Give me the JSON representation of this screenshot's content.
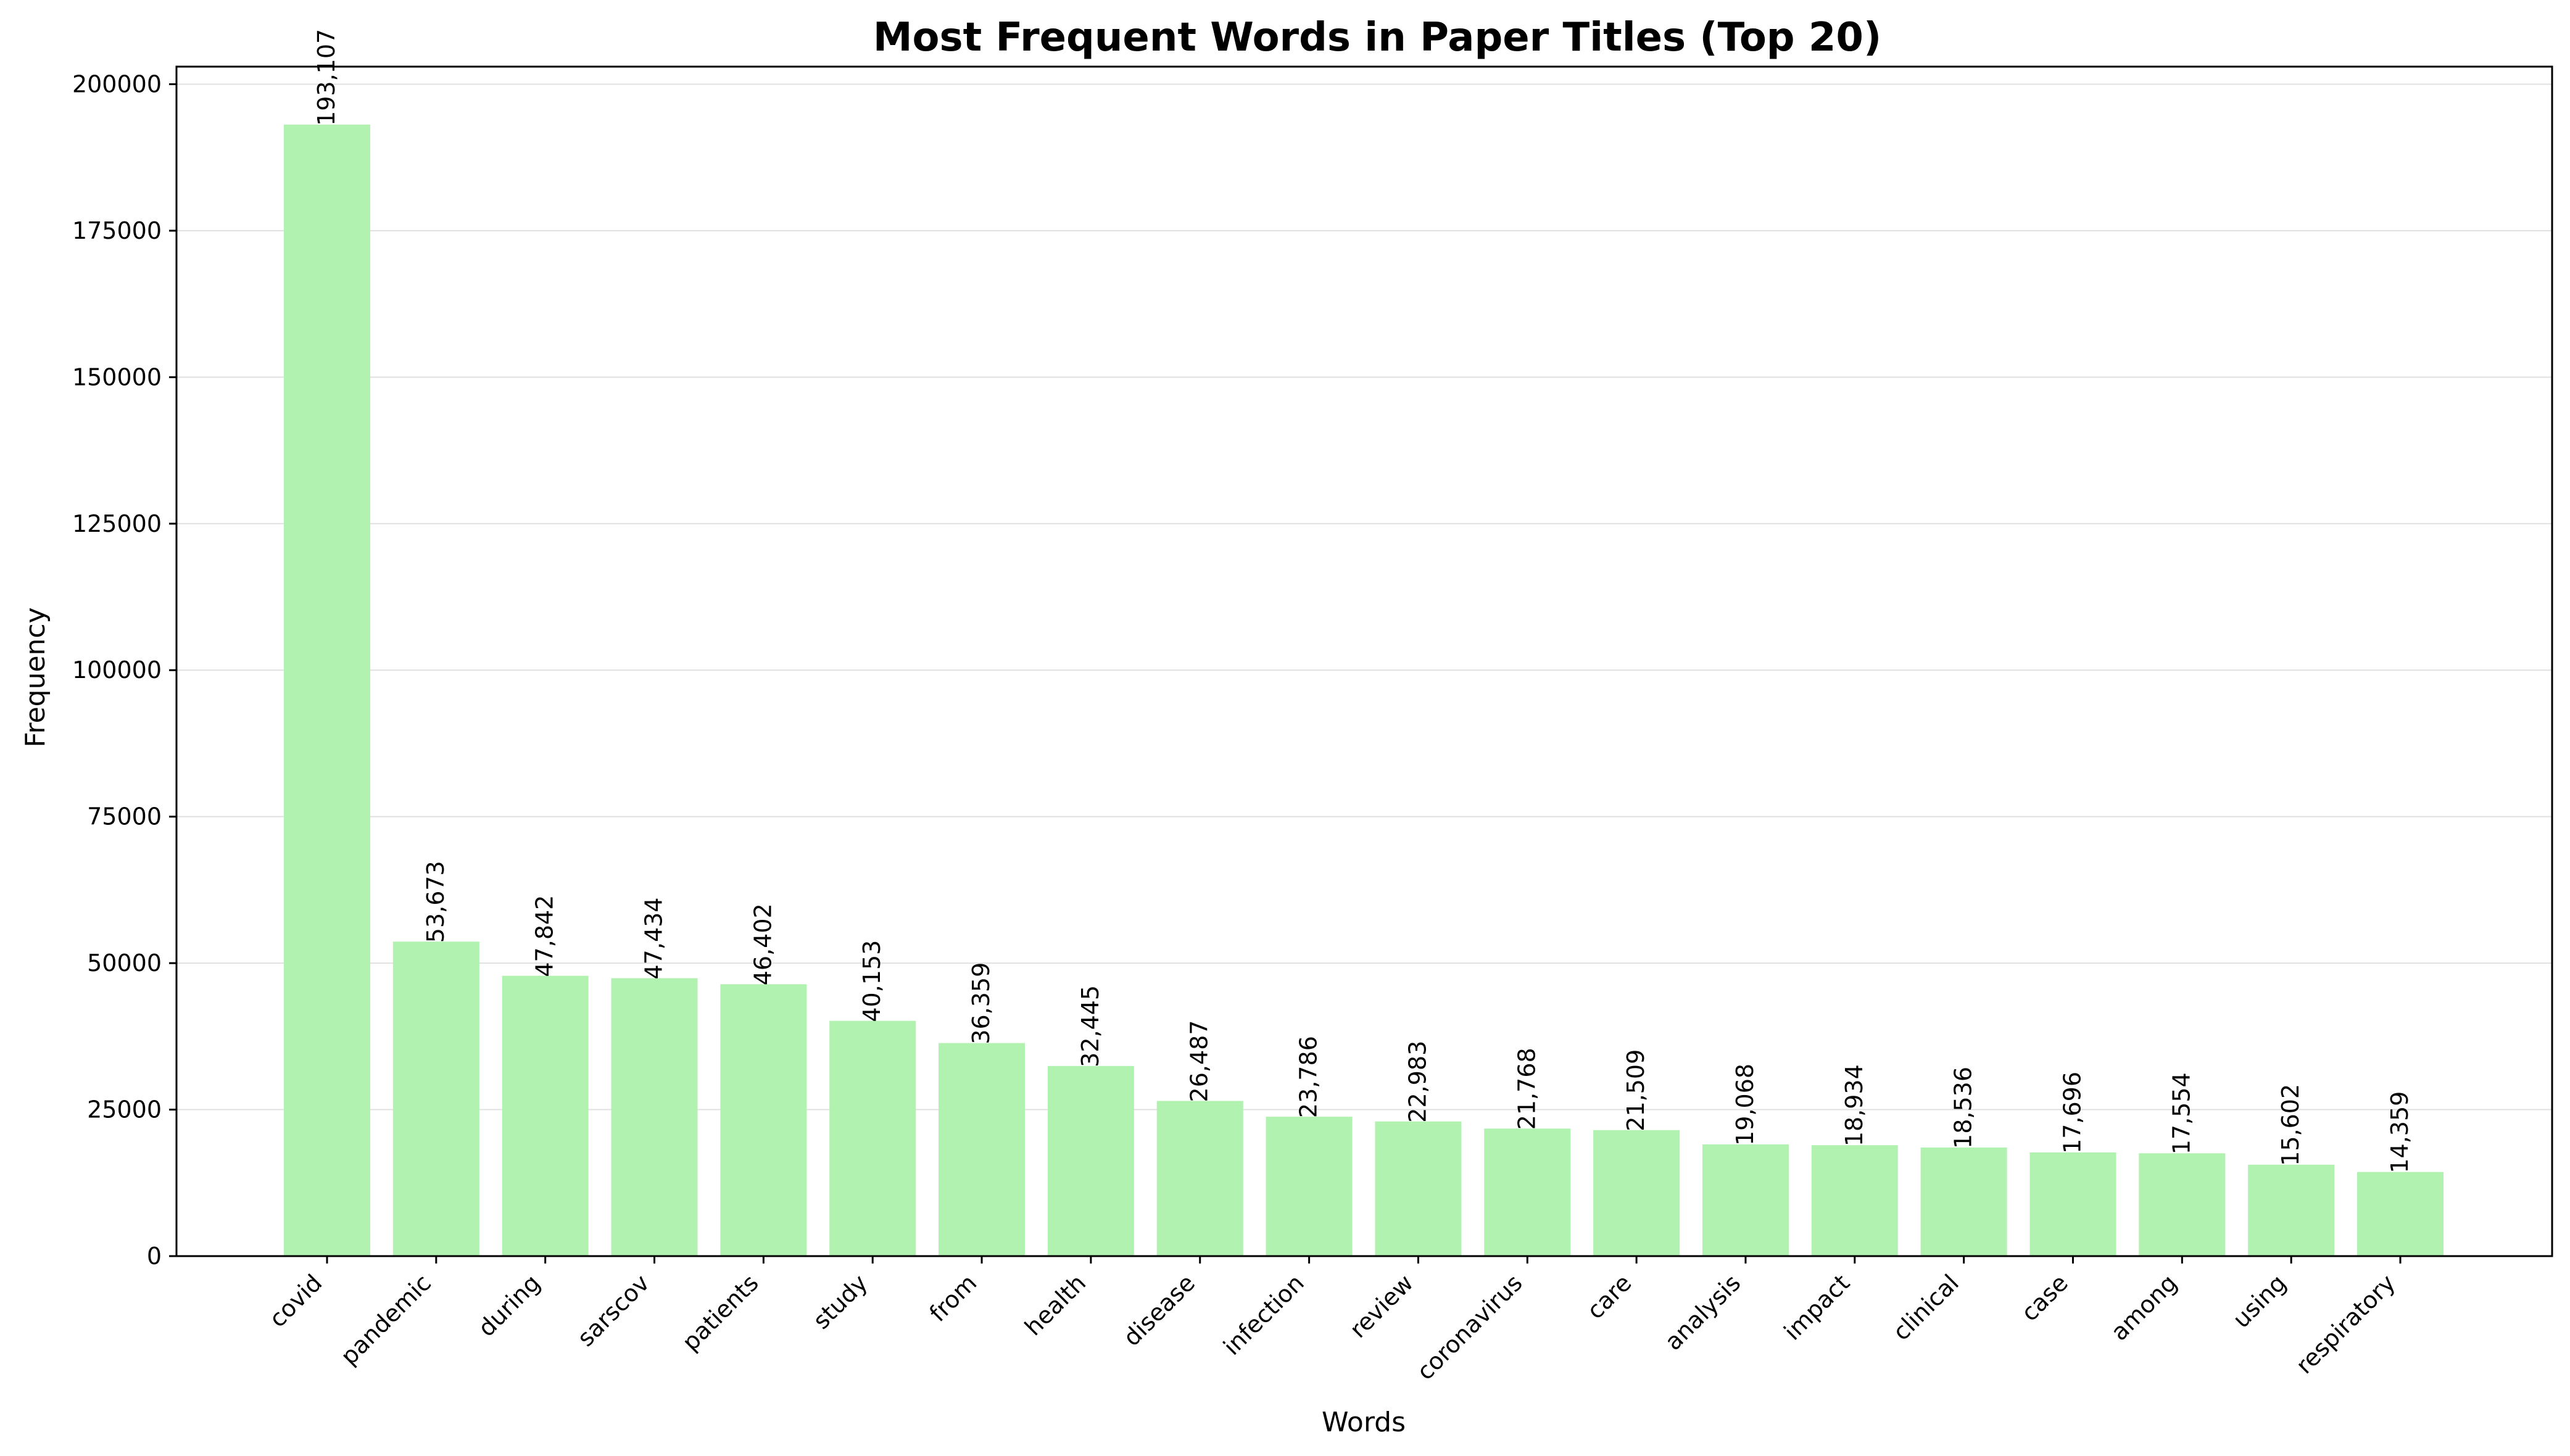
{
  "chart_data": {
    "type": "bar",
    "title": "Most Frequent Words in Paper Titles (Top 20)",
    "xlabel": "Words",
    "ylabel": "Frequency",
    "ylim": [
      0,
      203000
    ],
    "yticks": [
      0,
      25000,
      50000,
      75000,
      100000,
      125000,
      150000,
      175000,
      200000
    ],
    "categories": [
      "covid",
      "pandemic",
      "during",
      "sarscov",
      "patients",
      "study",
      "from",
      "health",
      "disease",
      "infection",
      "review",
      "coronavirus",
      "care",
      "analysis",
      "impact",
      "clinical",
      "case",
      "among",
      "using",
      "respiratory"
    ],
    "values": [
      193107,
      53673,
      47842,
      47434,
      46402,
      40153,
      36359,
      32445,
      26487,
      23786,
      22983,
      21768,
      21509,
      19068,
      18934,
      18536,
      17696,
      17554,
      15602,
      14359
    ],
    "value_labels": [
      "193,107",
      "53,673",
      "47,842",
      "47,434",
      "46,402",
      "40,153",
      "36,359",
      "32,445",
      "26,487",
      "23,786",
      "22,983",
      "21,768",
      "21,509",
      "19,068",
      "18,934",
      "18,536",
      "17,696",
      "17,554",
      "15,602",
      "14,359"
    ],
    "bar_color": "#b2f2b0",
    "grid": "horizontal",
    "legend": "none"
  }
}
